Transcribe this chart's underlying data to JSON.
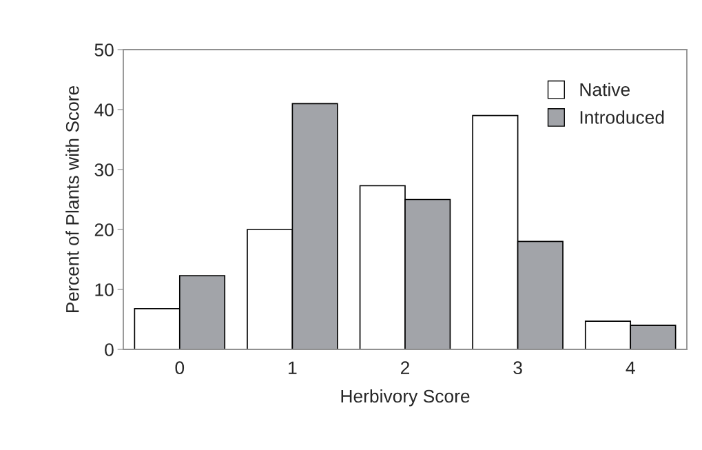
{
  "chart_data": {
    "type": "bar",
    "xlabel": "Herbivory Score",
    "ylabel": "Percent of Plants with Score",
    "categories": [
      "0",
      "1",
      "2",
      "3",
      "4"
    ],
    "series": [
      {
        "name": "Native",
        "color": "#ffffff",
        "values": [
          6.8,
          20,
          27.3,
          39,
          4.7
        ]
      },
      {
        "name": "Introduced",
        "color": "#a2a4a9",
        "values": [
          12.3,
          41,
          25,
          18,
          4
        ]
      }
    ],
    "ylim": [
      0,
      50
    ],
    "yticks": [
      0,
      10,
      20,
      30,
      40,
      50
    ],
    "grid": false,
    "legend": "top right"
  }
}
